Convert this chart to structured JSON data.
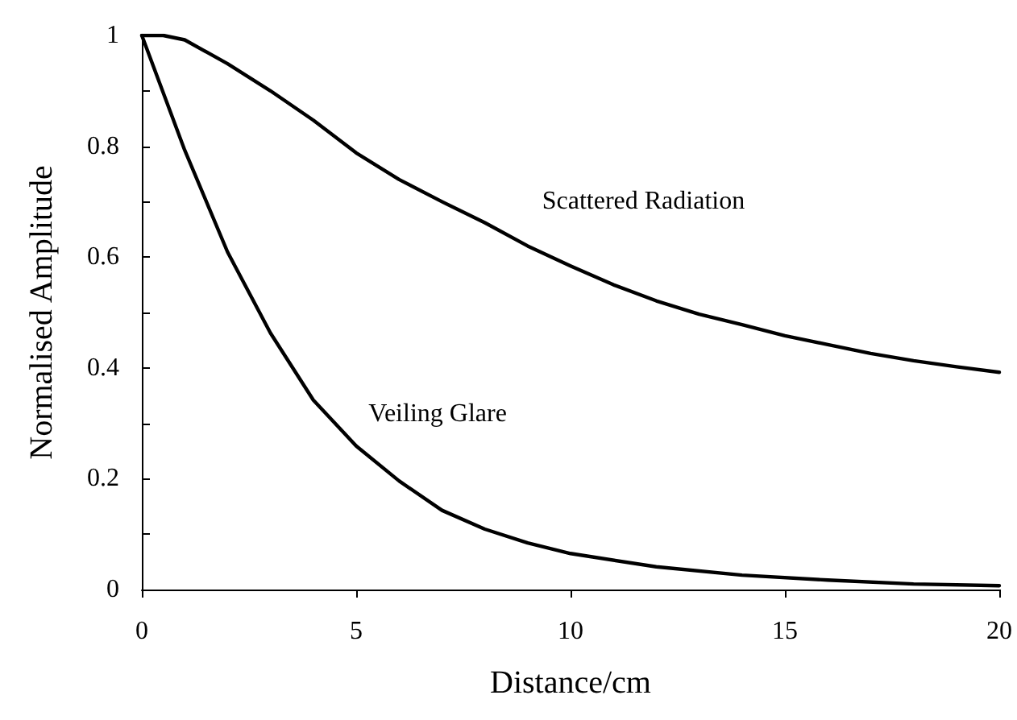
{
  "chart_data": {
    "type": "line",
    "xlabel": "Distance/cm",
    "ylabel": "Normalised Amplitude",
    "xlim": [
      0,
      20
    ],
    "xticks": [
      0,
      5,
      10,
      15,
      20
    ],
    "ylim": [
      0,
      1
    ],
    "yticks": [
      0,
      {
        "value": 0.1,
        "label": null
      },
      0.2,
      {
        "value": 0.3,
        "label": null
      },
      0.4,
      {
        "value": 0.5,
        "label": null
      },
      0.6,
      {
        "value": 0.7,
        "label": null
      },
      0.8,
      {
        "value": 0.9,
        "label": null
      },
      1
    ],
    "grid": false,
    "marker": "none",
    "line_style": "solid",
    "series": [
      {
        "color": "#000000",
        "x": [
          0,
          0.5,
          1,
          2,
          3,
          4,
          5,
          6,
          7,
          8,
          9,
          10,
          11,
          12,
          13,
          14,
          15,
          16,
          17,
          18,
          19,
          20
        ],
        "values": [
          1,
          1,
          0.992,
          0.949,
          0.9,
          0.847,
          0.788,
          0.74,
          0.7,
          0.662,
          0.62,
          0.584,
          0.55,
          0.521,
          0.497,
          0.478,
          0.458,
          0.442,
          0.426,
          0.413,
          0.402,
          0.392
        ]
      },
      {
        "color": "#000000",
        "x": [
          0,
          1,
          2,
          3,
          4,
          5,
          6,
          7,
          8,
          9,
          10,
          12,
          14,
          16,
          18,
          20
        ],
        "values": [
          1,
          0.793,
          0.609,
          0.463,
          0.342,
          0.259,
          0.196,
          0.143,
          0.109,
          0.084,
          0.065,
          0.041,
          0.026,
          0.017,
          0.01,
          0.007
        ]
      }
    ],
    "annotations": [
      "Scattered Radiation",
      "Veiling Glare"
    ]
  }
}
